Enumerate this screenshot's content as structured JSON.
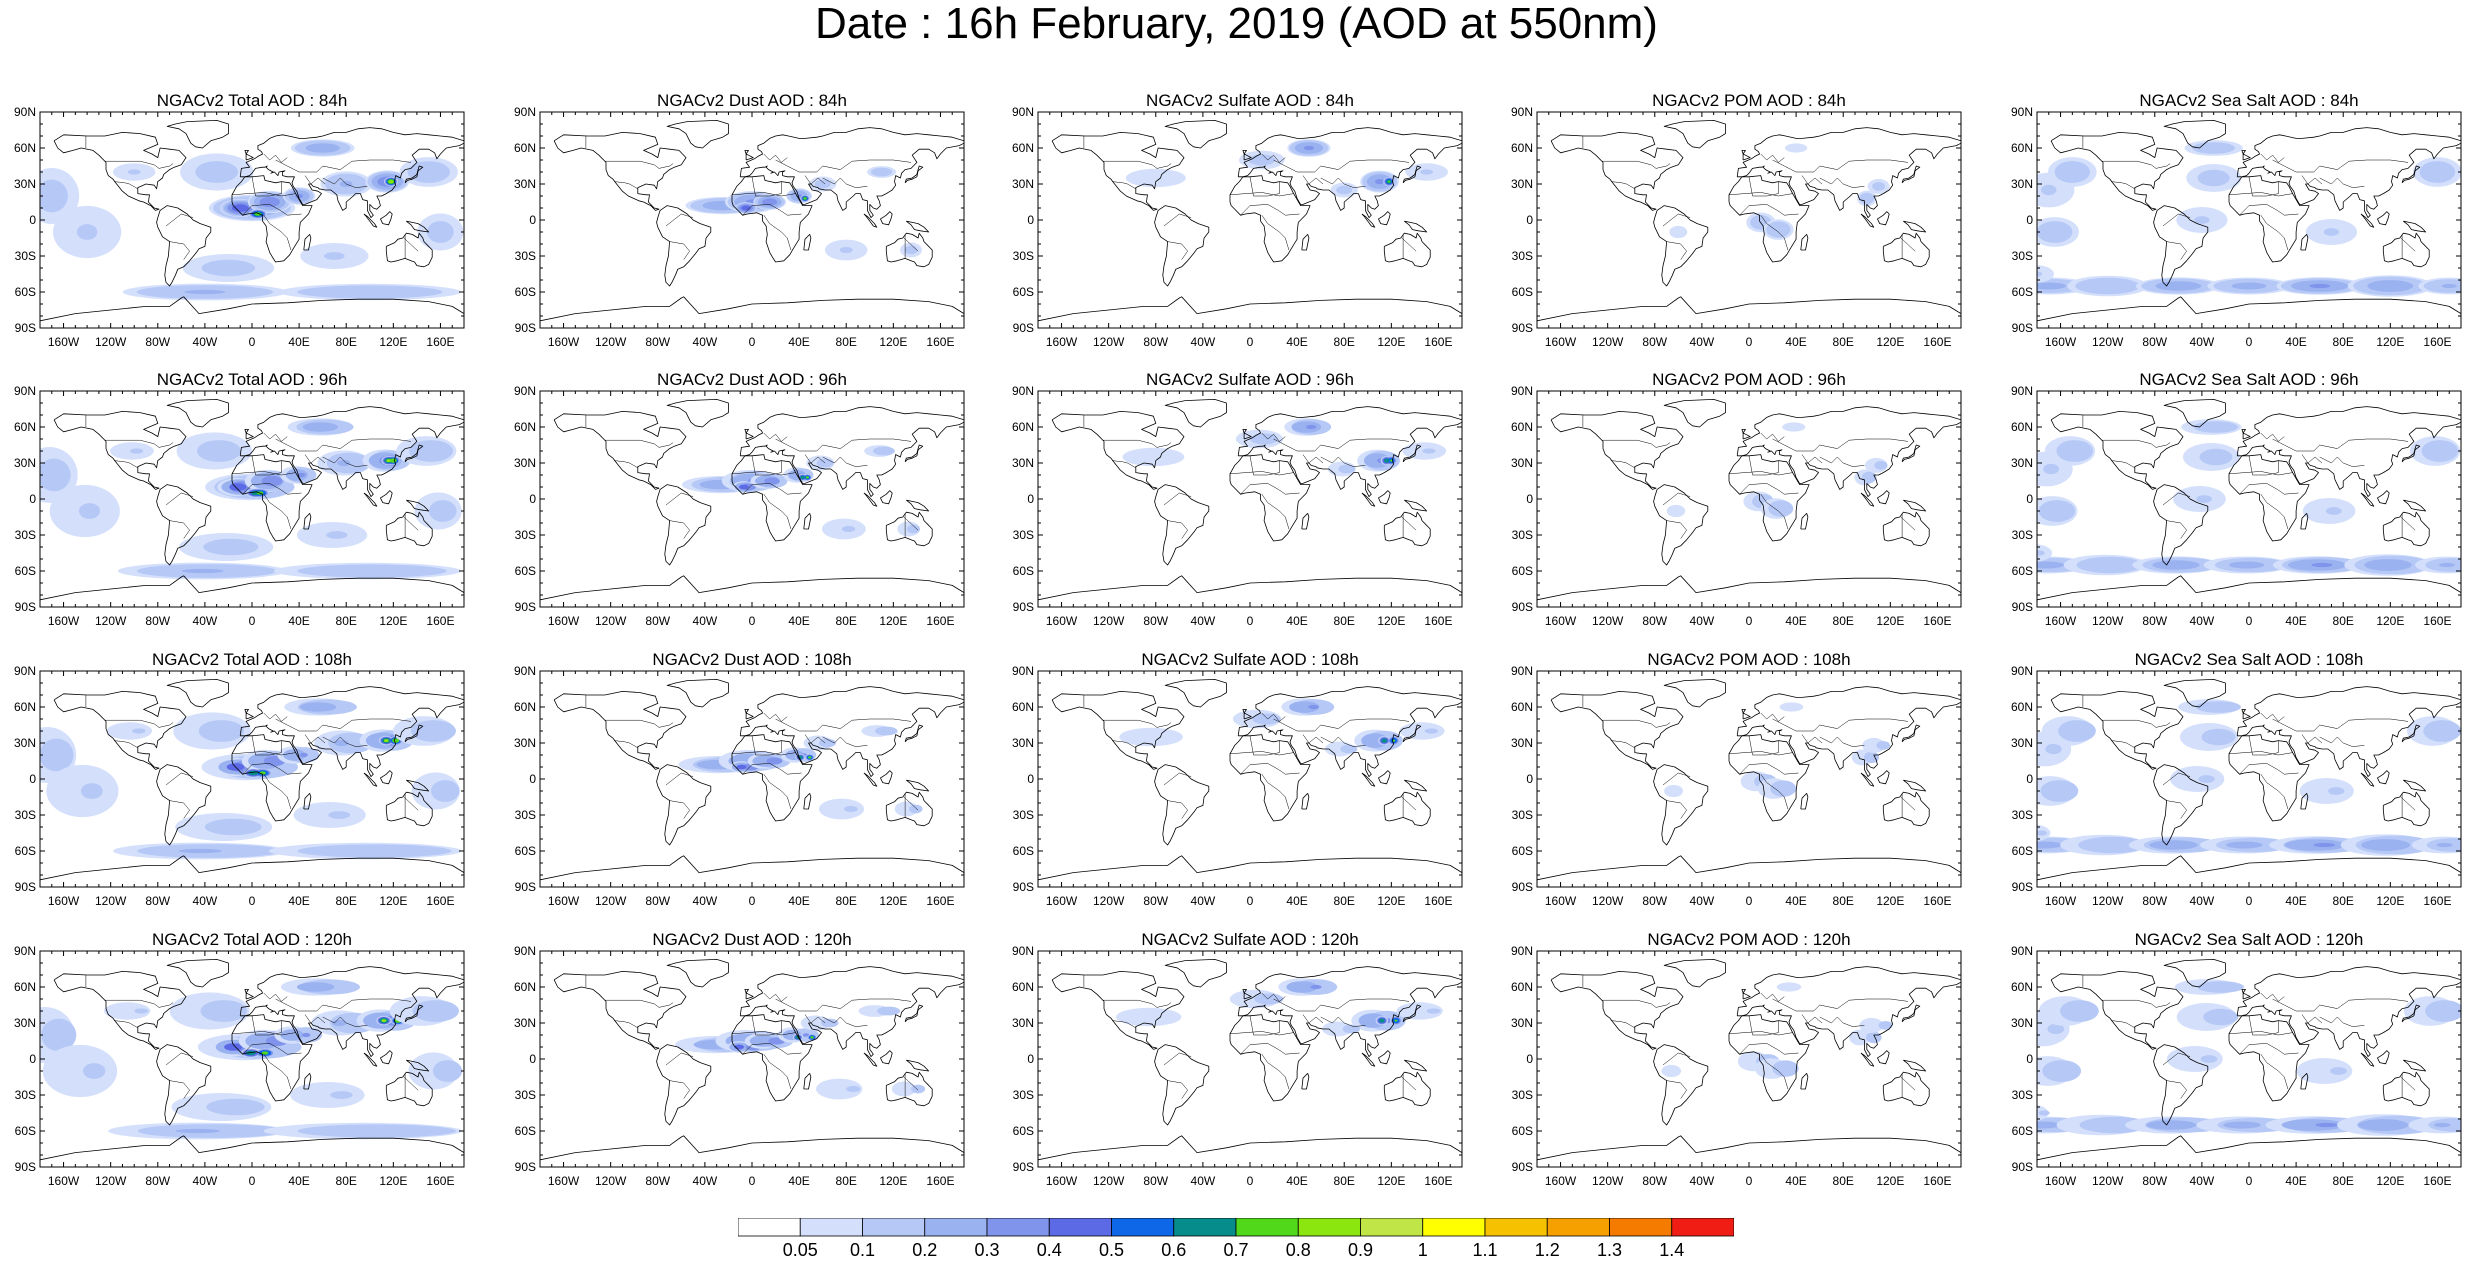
{
  "title": "Date : 16h February, 2019 (AOD at 550nm)",
  "rows": [
    {
      "panels": [
        {
          "title": "NGACv2 Total AOD : 84h",
          "field": "total"
        },
        {
          "title": "NGACv2 Dust AOD : 84h",
          "field": "dust"
        },
        {
          "title": "NGACv2 Sulfate AOD : 84h",
          "field": "sulfate"
        },
        {
          "title": "NGACv2 POM AOD : 84h",
          "field": "pom"
        },
        {
          "title": "NGACv2 Sea Salt AOD : 84h",
          "field": "seasalt"
        }
      ]
    },
    {
      "panels": [
        {
          "title": "NGACv2 Total AOD : 96h",
          "field": "total"
        },
        {
          "title": "NGACv2 Dust AOD : 96h",
          "field": "dust"
        },
        {
          "title": "NGACv2 Sulfate AOD : 96h",
          "field": "sulfate"
        },
        {
          "title": "NGACv2 POM AOD : 96h",
          "field": "pom"
        },
        {
          "title": "NGACv2 Sea Salt AOD : 96h",
          "field": "seasalt"
        }
      ]
    },
    {
      "panels": [
        {
          "title": "NGACv2 Total AOD : 108h",
          "field": "total"
        },
        {
          "title": "NGACv2 Dust AOD : 108h",
          "field": "dust"
        },
        {
          "title": "NGACv2 Sulfate AOD : 108h",
          "field": "sulfate"
        },
        {
          "title": "NGACv2 POM AOD : 108h",
          "field": "pom"
        },
        {
          "title": "NGACv2 Sea Salt AOD : 108h",
          "field": "seasalt"
        }
      ]
    },
    {
      "panels": [
        {
          "title": "NGACv2 Total AOD : 120h",
          "field": "total"
        },
        {
          "title": "NGACv2 Dust AOD : 120h",
          "field": "dust"
        },
        {
          "title": "NGACv2 Sulfate AOD : 120h",
          "field": "sulfate"
        },
        {
          "title": "NGACv2 POM AOD : 120h",
          "field": "pom"
        },
        {
          "title": "NGACv2 Sea Salt  AOD : 120h",
          "field": "seasalt"
        }
      ]
    }
  ],
  "lat_labels": [
    "90N",
    "60N",
    "30N",
    "0",
    "30S",
    "60S",
    "90S"
  ],
  "lon_labels": [
    "160W",
    "120W",
    "80W",
    "40W",
    "0",
    "40E",
    "80E",
    "120E",
    "160E"
  ],
  "colorbar": {
    "labels": [
      "0.05",
      "0.1",
      "0.2",
      "0.3",
      "0.4",
      "0.5",
      "0.6",
      "0.7",
      "0.8",
      "0.9",
      "1",
      "1.1",
      "1.2",
      "1.3",
      "1.4"
    ],
    "colors": [
      "#ffffff",
      "#d4e0fb",
      "#b6c8f6",
      "#9bb2f1",
      "#8094ec",
      "#5d6ae6",
      "#0d67e6",
      "#078c8c",
      "#52d81a",
      "#8ae60e",
      "#bfe646",
      "#ffff00",
      "#f6c200",
      "#f6a000",
      "#f47a00",
      "#ef1d14"
    ]
  },
  "colors": {
    "coast": "#000000",
    "border": "#000000",
    "land_bg": "#ffffff"
  }
}
